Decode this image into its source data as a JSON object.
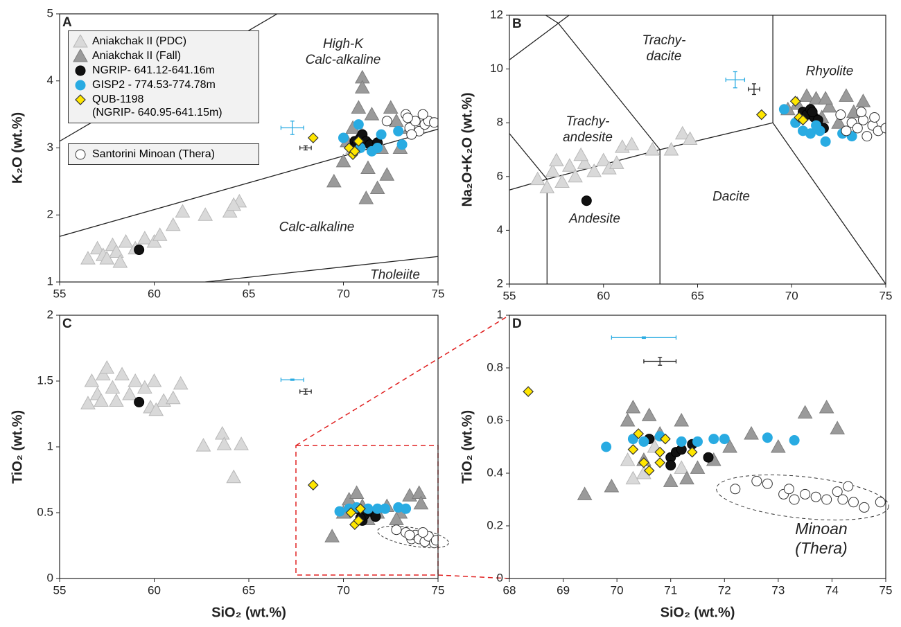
{
  "chart_data": [
    {
      "type": "scatter",
      "panel_label": "A",
      "y_label": "K₂O (wt.%)",
      "xlim": [
        55,
        75
      ],
      "xticks": [
        55,
        60,
        65,
        70,
        75
      ],
      "ylim": [
        1,
        5
      ],
      "yticks": [
        1,
        2,
        3,
        4,
        5
      ],
      "annotations": [
        "High-K\nCalc-alkaline",
        "Calc-alkaline",
        "Tholeiite"
      ],
      "boundary_lines": [
        {
          "x": [
            55,
            66.5
          ],
          "y": [
            3.1,
            5
          ]
        },
        {
          "x": [
            55,
            75
          ],
          "y": [
            1.68,
            3.28
          ]
        },
        {
          "x": [
            62.7,
            75
          ],
          "y": [
            1,
            1.38
          ]
        }
      ],
      "error_bars": [
        {
          "color": "#29abe2",
          "x": 67.3,
          "y": 3.3,
          "xerr": 0.6,
          "yerr": 0.1
        },
        {
          "color": "#222222",
          "x": 68,
          "y": 3.0,
          "xerr": 0.3,
          "yerr": 0.03
        }
      ],
      "series": [
        {
          "name": "Aniakchak II (PDC)",
          "marker": "triangle",
          "color": "#d9d9d9",
          "x": [
            56.5,
            57,
            57.3,
            57.8,
            58,
            58.5,
            59,
            59.5,
            60,
            60.3,
            61,
            61.5,
            62.7,
            64,
            64.5,
            64.2,
            57.5,
            58.2,
            70.5,
            71
          ],
          "values": [
            1.35,
            1.5,
            1.4,
            1.55,
            1.45,
            1.6,
            1.5,
            1.65,
            1.6,
            1.7,
            1.85,
            2.05,
            2.0,
            2.05,
            2.2,
            2.15,
            1.35,
            1.3,
            3.0,
            3.2
          ]
        },
        {
          "name": "Aniakchak II (Fall)",
          "marker": "triangle",
          "color": "#9a9a9a",
          "x": [
            69.5,
            70,
            70.5,
            70.8,
            71,
            71,
            71.2,
            71.5,
            71.8,
            72,
            72.3,
            72.8,
            73,
            73.5,
            71.3,
            70.2,
            72.5
          ],
          "values": [
            2.5,
            2.8,
            3.3,
            3.6,
            4.05,
            3.9,
            2.25,
            3.5,
            2.4,
            3.0,
            2.6,
            3.4,
            3.0,
            3.3,
            2.7,
            3.1,
            3.6
          ]
        },
        {
          "name": "NGRIP- 641.12-641.16m",
          "marker": "circle",
          "color": "#111111",
          "x": [
            59.2,
            70.6,
            70.9,
            71,
            71.2,
            71.4,
            71.8,
            70.7
          ],
          "values": [
            1.48,
            3.1,
            3.15,
            3.2,
            3.1,
            3.05,
            3.08,
            3.05
          ]
        },
        {
          "name": "GISP2 - 774.53-774.78m",
          "marker": "circle",
          "color": "#29abe2",
          "x": [
            70.8,
            71.5,
            72,
            70,
            72.9,
            73.1,
            71.8,
            70.9
          ],
          "values": [
            3.35,
            2.95,
            3.2,
            3.15,
            3.25,
            3.05,
            3.0,
            3.0
          ]
        },
        {
          "name": "QUB-1198\n(NGRIP- 640.95-641.15m)",
          "marker": "diamond",
          "color": "#ffe600",
          "x": [
            68.4,
            70.3,
            70.5,
            70.8,
            70.6
          ],
          "values": [
            3.15,
            3.0,
            2.9,
            3.1,
            2.95
          ]
        },
        {
          "name": "Santorini Minoan (Thera)",
          "marker": "circle",
          "color": "#ffffff",
          "x": [
            72.3,
            73.3,
            73.5,
            73.8,
            74,
            74.3,
            74.5,
            74.8,
            73.6,
            74.2,
            73.4
          ],
          "values": [
            3.4,
            3.5,
            3.3,
            3.4,
            3.25,
            3.35,
            3.4,
            3.38,
            3.2,
            3.5,
            3.45
          ]
        }
      ]
    },
    {
      "type": "scatter",
      "panel_label": "B",
      "y_label": "Na₂O+K₂O (wt.%)",
      "xlim": [
        55,
        75
      ],
      "xticks": [
        55,
        60,
        65,
        70,
        75
      ],
      "ylim": [
        2,
        12
      ],
      "yticks": [
        2,
        4,
        6,
        8,
        10,
        12
      ],
      "annotations": [
        "Trachy-\ndacite",
        "Rhyolite",
        "Trachy-\nandesite",
        "Andesite",
        "Dacite"
      ],
      "boundary_lines": [
        {
          "x": [
            55,
            57,
            63,
            69
          ],
          "y": [
            5.5,
            5.9,
            7,
            8
          ]
        },
        {
          "x": [
            57,
            57
          ],
          "y": [
            2,
            5.9
          ]
        },
        {
          "x": [
            63,
            63
          ],
          "y": [
            2,
            7
          ]
        },
        {
          "x": [
            69,
            69
          ],
          "y": [
            8,
            13
          ]
        },
        {
          "x": [
            69,
            75
          ],
          "y": [
            8,
            2
          ]
        },
        {
          "x": [
            53,
            57
          ],
          "y": [
            9.3,
            5.9
          ]
        },
        {
          "x": [
            53,
            57.6,
            63
          ],
          "y": [
            9.3,
            11.7,
            7
          ]
        },
        {
          "x": [
            52.5,
            57.6,
            61
          ],
          "y": [
            14,
            11.7,
            13.5
          ]
        }
      ],
      "error_bars": [
        {
          "color": "#29abe2",
          "x": 67,
          "y": 9.6,
          "xerr": 0.5,
          "yerr": 0.3
        },
        {
          "color": "#222222",
          "x": 68,
          "y": 9.25,
          "xerr": 0.3,
          "yerr": 0.2
        }
      ],
      "series": [
        {
          "marker": "triangle",
          "color": "#d9d9d9",
          "x": [
            56.5,
            57,
            57.3,
            57.8,
            58.2,
            58.5,
            59,
            59.5,
            60,
            60.3,
            60.7,
            61,
            61.5,
            62.6,
            63.6,
            64.2,
            64.6,
            57.5,
            58.8
          ],
          "values": [
            5.9,
            5.6,
            6.2,
            5.8,
            6.4,
            6.0,
            6.5,
            6.2,
            6.6,
            6.3,
            6.5,
            7.1,
            7.2,
            7.0,
            7.0,
            7.6,
            7.4,
            6.6,
            6.8
          ]
        },
        {
          "marker": "triangle",
          "color": "#9a9a9a",
          "x": [
            70.3,
            70.5,
            70.8,
            71,
            71.3,
            71.6,
            72,
            72.5,
            72.9,
            73.3,
            73.8,
            71.8,
            69.8
          ],
          "values": [
            8.7,
            8.3,
            9.0,
            8.5,
            8.9,
            8.2,
            8.6,
            8.0,
            9.0,
            8.4,
            8.8,
            8.9,
            8.5
          ]
        },
        {
          "marker": "circle",
          "color": "#111111",
          "x": [
            59.1,
            70.6,
            70.8,
            71,
            71.2,
            71.4,
            71.7,
            71.1
          ],
          "values": [
            5.1,
            8.4,
            8.3,
            8.5,
            8.2,
            8.1,
            7.8,
            8.4
          ]
        },
        {
          "marker": "circle",
          "color": "#29abe2",
          "x": [
            69.6,
            70.2,
            70.6,
            71,
            71.5,
            71.8,
            72.7,
            73.2,
            71.3
          ],
          "values": [
            8.5,
            8.0,
            7.7,
            7.6,
            7.7,
            7.3,
            7.6,
            7.5,
            7.9
          ]
        },
        {
          "marker": "diamond",
          "color": "#ffe600",
          "x": [
            68.4,
            70.2,
            70.4,
            70.6
          ],
          "values": [
            8.3,
            8.8,
            8.2,
            8.1
          ]
        },
        {
          "marker": "circle",
          "color": "#ffffff",
          "x": [
            72.6,
            72.9,
            73.2,
            73.5,
            73.8,
            74,
            74.3,
            74.6,
            75,
            73.7,
            74.4
          ],
          "values": [
            8.3,
            7.7,
            8.0,
            7.8,
            8.1,
            7.5,
            7.9,
            7.7,
            7.8,
            8.4,
            8.2
          ]
        }
      ]
    },
    {
      "type": "scatter",
      "panel_label": "C",
      "x_label": "SiO₂ (wt.%)",
      "y_label": "TiO₂ (wt.%)",
      "xlim": [
        55,
        75
      ],
      "xticks": [
        55,
        60,
        65,
        70,
        75
      ],
      "ylim": [
        0,
        2
      ],
      "yticks": [
        0,
        0.5,
        1,
        1.5,
        2
      ],
      "annotations": [],
      "boundary_lines": [],
      "error_bars": [
        {
          "color": "#29abe2",
          "x": 67.3,
          "y": 1.51,
          "xerr": 0.6,
          "yerr": 0.005
        },
        {
          "color": "#222222",
          "x": 68,
          "y": 1.42,
          "xerr": 0.3,
          "yerr": 0.02
        }
      ],
      "series": [
        {
          "marker": "triangle",
          "color": "#d9d9d9",
          "x": [
            56.5,
            56.7,
            57,
            57.3,
            57.5,
            57.8,
            58,
            58.3,
            58.7,
            59,
            59.5,
            59.8,
            60,
            60.5,
            61,
            61.4,
            62.6,
            63.6,
            63.7,
            64.6,
            64.2,
            57.2,
            60.1
          ],
          "values": [
            1.33,
            1.5,
            1.4,
            1.55,
            1.6,
            1.45,
            1.35,
            1.55,
            1.4,
            1.5,
            1.45,
            1.3,
            1.5,
            1.35,
            1.37,
            1.48,
            1.01,
            1.1,
            1.02,
            1.02,
            0.77,
            1.35,
            1.28
          ]
        },
        {
          "marker": "triangle",
          "color": "#9a9a9a",
          "x": [
            69.4,
            70,
            70.3,
            70.7,
            71,
            71.3,
            71.8,
            72.3,
            73,
            73.5,
            74,
            74.1,
            72.8
          ],
          "values": [
            0.32,
            0.5,
            0.6,
            0.65,
            0.55,
            0.45,
            0.5,
            0.55,
            0.5,
            0.63,
            0.65,
            0.57,
            0.45
          ]
        },
        {
          "marker": "circle",
          "color": "#111111",
          "x": [
            59.2,
            70.7,
            71,
            71.1,
            71.4,
            71.7,
            70.9
          ],
          "values": [
            1.34,
            0.53,
            0.44,
            0.48,
            0.51,
            0.47,
            0.46
          ]
        },
        {
          "marker": "circle",
          "color": "#29abe2",
          "x": [
            69.8,
            70.3,
            70.7,
            71.3,
            71.8,
            72.2,
            72.9,
            73.3
          ],
          "values": [
            0.51,
            0.53,
            0.54,
            0.53,
            0.53,
            0.53,
            0.54,
            0.53
          ]
        },
        {
          "marker": "diamond",
          "color": "#ffe600",
          "x": [
            68.4,
            70.4,
            70.6,
            70.8,
            70.9
          ],
          "values": [
            0.71,
            0.5,
            0.41,
            0.44,
            0.53
          ]
        },
        {
          "marker": "circle",
          "color": "#ffffff",
          "x": [
            72.8,
            73.3,
            73.6,
            73.8,
            74,
            74.3,
            74.5,
            74.8,
            74.9,
            73.5,
            74.2
          ],
          "values": [
            0.37,
            0.35,
            0.3,
            0.33,
            0.3,
            0.28,
            0.32,
            0.27,
            0.29,
            0.33,
            0.35
          ]
        }
      ]
    },
    {
      "type": "scatter",
      "panel_label": "D",
      "x_label": "SiO₂ (wt.%)",
      "y_label": "TiO₂ (wt.%)",
      "xlim": [
        68,
        75
      ],
      "xticks": [
        68,
        69,
        70,
        71,
        72,
        73,
        74,
        75
      ],
      "ylim": [
        0,
        1
      ],
      "yticks": [
        0,
        0.2,
        0.4,
        0.6,
        0.8,
        1
      ],
      "annotations": [
        "Minoan\n(Thera)"
      ],
      "boundary_lines": [],
      "error_bars": [
        {
          "color": "#29abe2",
          "x": 70.5,
          "y": 0.915,
          "xerr": 0.6,
          "yerr": 0.003
        },
        {
          "color": "#222222",
          "x": 70.8,
          "y": 0.825,
          "xerr": 0.3,
          "yerr": 0.015
        }
      ],
      "series": [
        {
          "marker": "triangle",
          "color": "#d9d9d9",
          "x": [
            70.2,
            70.3,
            70.5,
            71.2,
            70.7
          ],
          "values": [
            0.45,
            0.38,
            0.4,
            0.42,
            0.5
          ]
        },
        {
          "marker": "triangle",
          "color": "#9a9a9a",
          "x": [
            69.4,
            69.9,
            70.2,
            70.3,
            70.6,
            70.8,
            71,
            71.2,
            71.5,
            71.8,
            72.1,
            72.5,
            73,
            73.5,
            73.9,
            74.1,
            70.5,
            71.3
          ],
          "values": [
            0.32,
            0.35,
            0.6,
            0.65,
            0.62,
            0.55,
            0.37,
            0.6,
            0.42,
            0.45,
            0.5,
            0.55,
            0.5,
            0.63,
            0.65,
            0.57,
            0.45,
            0.38
          ]
        },
        {
          "marker": "circle",
          "color": "#111111",
          "x": [
            70.6,
            71,
            71,
            71.1,
            71.2,
            71.4,
            71.7
          ],
          "values": [
            0.53,
            0.46,
            0.43,
            0.48,
            0.49,
            0.51,
            0.46
          ]
        },
        {
          "marker": "circle",
          "color": "#29abe2",
          "x": [
            69.8,
            70.3,
            70.5,
            70.8,
            71.2,
            71.5,
            71.8,
            72,
            72.8,
            73.3
          ],
          "values": [
            0.5,
            0.53,
            0.52,
            0.54,
            0.52,
            0.52,
            0.53,
            0.53,
            0.535,
            0.525
          ]
        },
        {
          "marker": "diamond",
          "color": "#ffe600",
          "x": [
            68.35,
            70.3,
            70.4,
            70.5,
            70.6,
            70.8,
            70.8,
            70.9,
            71.4
          ],
          "values": [
            0.71,
            0.49,
            0.55,
            0.44,
            0.41,
            0.44,
            0.48,
            0.53,
            0.48
          ]
        },
        {
          "marker": "circle",
          "color": "#ffffff",
          "x": [
            72.2,
            72.6,
            72.8,
            73.1,
            73.3,
            73.5,
            73.7,
            73.9,
            74.1,
            74.3,
            74.6,
            74.9,
            73.2,
            74.2,
            74.4
          ],
          "values": [
            0.34,
            0.37,
            0.36,
            0.32,
            0.3,
            0.32,
            0.31,
            0.3,
            0.33,
            0.35,
            0.27,
            0.29,
            0.34,
            0.3,
            0.29
          ]
        }
      ]
    }
  ]
}
